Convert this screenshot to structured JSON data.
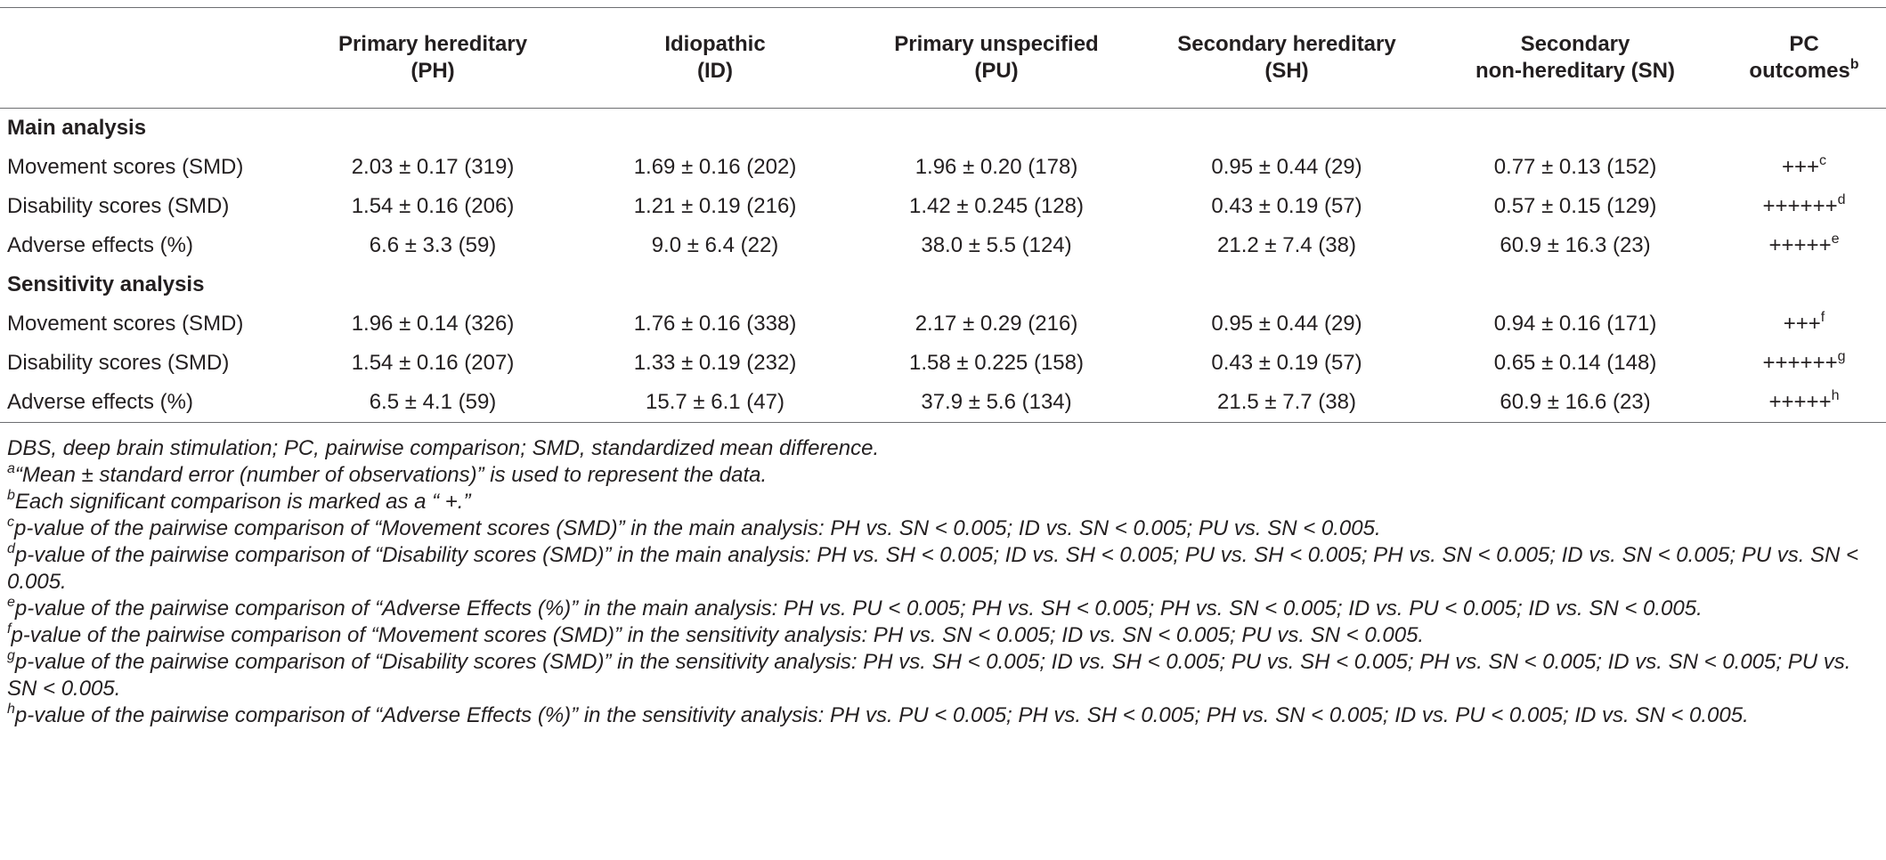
{
  "table": {
    "headers": [
      {
        "line1": "",
        "line2": ""
      },
      {
        "line1": "Primary hereditary",
        "line2": "(PH)"
      },
      {
        "line1": "Idiopathic",
        "line2": "(ID)"
      },
      {
        "line1": "Primary unspecified",
        "line2": "(PU)"
      },
      {
        "line1": "Secondary hereditary",
        "line2": "(SH)"
      },
      {
        "line1": "Secondary",
        "line2": "non-hereditary (SN)"
      },
      {
        "line1": "PC",
        "line2": "outcomes",
        "sup": "b"
      }
    ],
    "sections": [
      {
        "title": "Main analysis",
        "rows": [
          {
            "label": "Movement scores (SMD)",
            "ph": "2.03 ± 0.17 (319)",
            "id": "1.69 ± 0.16 (202)",
            "pu": "1.96 ± 0.20 (178)",
            "sh": "0.95 ± 0.44 (29)",
            "sn": "0.77 ± 0.13 (152)",
            "pc": "+++",
            "pc_sup": "c"
          },
          {
            "label": "Disability scores (SMD)",
            "ph": "1.54 ± 0.16 (206)",
            "id": "1.21 ± 0.19 (216)",
            "pu": "1.42 ± 0.245 (128)",
            "sh": "0.43 ± 0.19 (57)",
            "sn": "0.57 ± 0.15 (129)",
            "pc": "++++++",
            "pc_sup": "d"
          },
          {
            "label": "Adverse effects (%)",
            "ph": "6.6 ± 3.3 (59)",
            "id": "9.0 ± 6.4 (22)",
            "pu": "38.0 ± 5.5 (124)",
            "sh": "21.2 ± 7.4 (38)",
            "sn": "60.9 ± 16.3 (23)",
            "pc": "+++++",
            "pc_sup": "e"
          }
        ]
      },
      {
        "title": "Sensitivity analysis",
        "rows": [
          {
            "label": "Movement scores (SMD)",
            "ph": "1.96 ± 0.14 (326)",
            "id": "1.76 ± 0.16 (338)",
            "pu": "2.17 ± 0.29 (216)",
            "sh": "0.95 ± 0.44 (29)",
            "sn": "0.94 ± 0.16 (171)",
            "pc": "+++",
            "pc_sup": "f"
          },
          {
            "label": "Disability scores (SMD)",
            "ph": "1.54 ± 0.16 (207)",
            "id": "1.33 ± 0.19 (232)",
            "pu": "1.58 ± 0.225 (158)",
            "sh": "0.43 ± 0.19 (57)",
            "sn": "0.65 ± 0.14 (148)",
            "pc": "++++++",
            "pc_sup": "g"
          },
          {
            "label": "Adverse effects (%)",
            "ph": "6.5 ± 4.1 (59)",
            "id": "15.7 ± 6.1 (47)",
            "pu": "37.9 ± 5.6 (134)",
            "sh": "21.5 ± 7.7 (38)",
            "sn": "60.9 ± 16.6 (23)",
            "pc": "+++++",
            "pc_sup": "h"
          }
        ]
      }
    ]
  },
  "notes": {
    "abbrev": "DBS, deep brain stimulation; PC, pairwise comparison; SMD, standardized mean difference.",
    "items": [
      {
        "sup": "a",
        "text": "“Mean ± standard error (number of observations)” is used to represent the data."
      },
      {
        "sup": "b",
        "text": "Each significant comparison is marked as a “ +.”"
      },
      {
        "sup": "c",
        "text": "p-value of the pairwise comparison of “Movement scores (SMD)” in the main analysis: PH vs. SN < 0.005; ID vs. SN < 0.005; PU vs. SN < 0.005."
      },
      {
        "sup": "d",
        "text": "p-value of the pairwise comparison of “Disability scores (SMD)” in the main analysis: PH vs. SH < 0.005; ID vs. SH < 0.005; PU vs. SH < 0.005; PH vs. SN < 0.005; ID vs. SN < 0.005; PU vs. SN < 0.005."
      },
      {
        "sup": "e",
        "text": "p-value of the pairwise comparison of “Adverse Effects (%)” in the main analysis: PH vs. PU < 0.005; PH vs. SH < 0.005; PH vs. SN < 0.005; ID vs. PU < 0.005; ID vs. SN < 0.005."
      },
      {
        "sup": "f",
        "text": "p-value of the pairwise comparison of “Movement scores (SMD)” in the sensitivity analysis: PH vs. SN < 0.005; ID vs. SN < 0.005; PU vs. SN < 0.005."
      },
      {
        "sup": "g",
        "text": "p-value of the pairwise comparison of “Disability scores (SMD)” in the sensitivity analysis: PH vs. SH < 0.005; ID vs. SH < 0.005; PU vs. SH < 0.005; PH vs. SN < 0.005; ID vs. SN < 0.005; PU vs. SN < 0.005."
      },
      {
        "sup": "h",
        "text": "p-value of the pairwise comparison of “Adverse Effects (%)” in the sensitivity analysis: PH vs. PU < 0.005; PH vs. SH < 0.005; PH vs. SN < 0.005; ID vs. PU < 0.005; ID vs. SN < 0.005."
      }
    ]
  }
}
